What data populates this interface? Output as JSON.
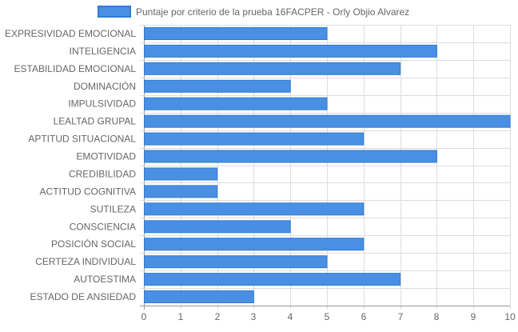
{
  "chart_data": {
    "type": "bar",
    "orientation": "horizontal",
    "legend_position": "top",
    "grid": true,
    "xlim": [
      0,
      10
    ],
    "x_ticks": [
      "0",
      "1",
      "2",
      "3",
      "4",
      "5",
      "6",
      "7",
      "8",
      "9",
      "10"
    ],
    "categories": [
      "EXPRESIVIDAD EMOCIONAL",
      "INTELIGENCIA",
      "ESTABILIDAD EMOCIONAL",
      "DOMINACIÓN",
      "IMPULSIVIDAD",
      "LEALTAD GRUPAL",
      "APTITUD SITUACIONAL",
      "EMOTIVIDAD",
      "CREDIBILIDAD",
      "ACTITUD COGNITIVA",
      "SUTILEZA",
      "CONSCIENCIA",
      "POSICIÓN SOCIAL",
      "CERTEZA INDIVIDUAL",
      "AUTOESTIMA",
      "ESTADO DE ANSIEDAD"
    ],
    "series": [
      {
        "name": "Puntaje por criterio de la prueba 16FACPER - Orly Objio Alvarez",
        "color": "#4a90e2",
        "border_color": "#2f7bd6",
        "values": [
          5,
          8,
          7,
          4,
          5,
          10,
          6,
          8,
          2,
          2,
          6,
          4,
          6,
          5,
          7,
          3
        ]
      }
    ]
  }
}
